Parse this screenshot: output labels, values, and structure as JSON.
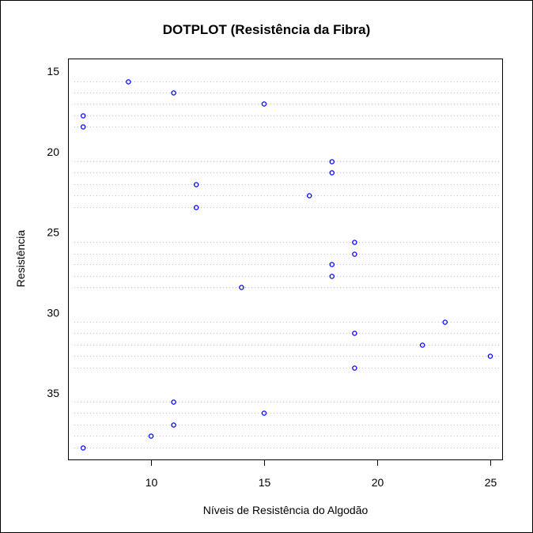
{
  "chart_data": {
    "type": "scatter",
    "subtype": "dotchart",
    "title": "DOTPLOT (Resistência da Fibra)",
    "xlabel": "Níveis de Resistência do Algodão",
    "ylabel": "Resistência",
    "xlim": [
      6.9,
      25.6
    ],
    "ylim": [
      15.0,
      39.0
    ],
    "x_ticks": [
      10,
      15,
      20,
      25
    ],
    "y_ticks": [
      15,
      20,
      25,
      30,
      35
    ],
    "y_axis_reversed": true,
    "grid": "horizontal dotted lines per point",
    "point_color": "#0000ff",
    "gridline_color": "#bebebe",
    "rows_y": [
      15.64,
      16.33,
      17.02,
      17.75,
      18.43,
      20.59,
      21.27,
      22.01,
      22.7,
      23.44,
      25.59,
      26.33,
      27.01,
      27.75,
      28.43,
      30.59,
      31.27,
      32.01,
      32.7,
      33.44,
      35.54,
      36.23,
      36.96,
      37.65,
      38.38
    ],
    "values": [
      9,
      11,
      15,
      7,
      7,
      18,
      18,
      12,
      17,
      12,
      19,
      19,
      18,
      18,
      14,
      23,
      19,
      22,
      25,
      19,
      11,
      15,
      11,
      10,
      7
    ]
  }
}
